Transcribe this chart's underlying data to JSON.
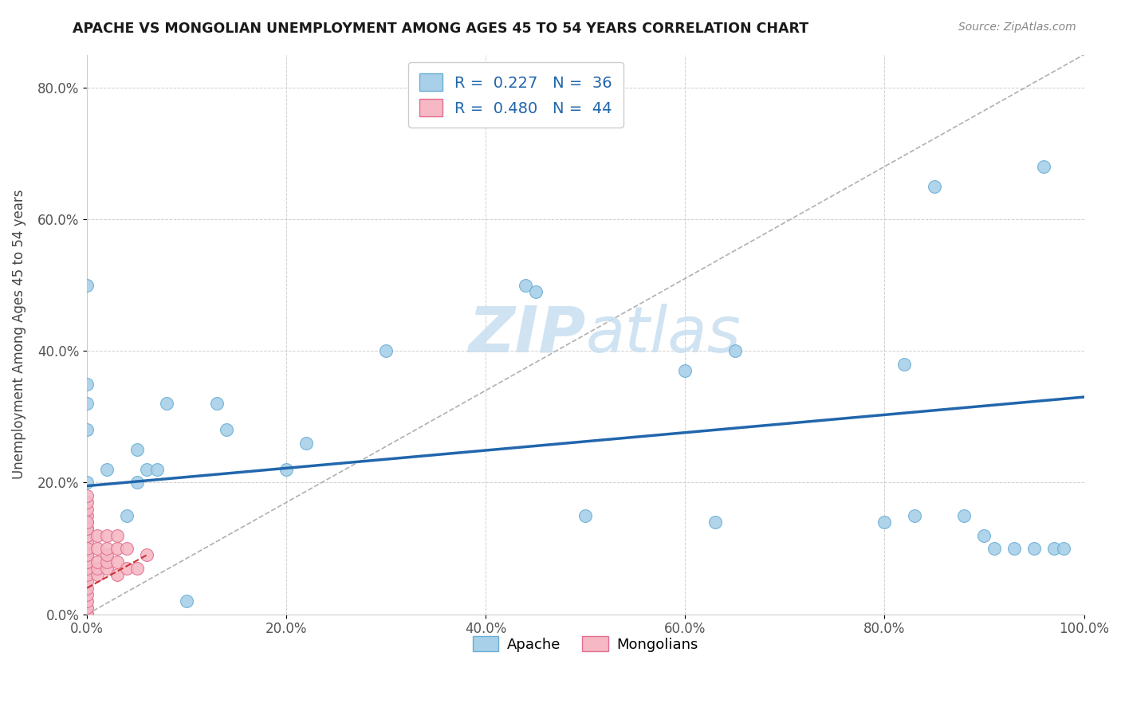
{
  "title": "APACHE VS MONGOLIAN UNEMPLOYMENT AMONG AGES 45 TO 54 YEARS CORRELATION CHART",
  "source": "Source: ZipAtlas.com",
  "ylabel": "Unemployment Among Ages 45 to 54 years",
  "xlim": [
    0,
    1.0
  ],
  "ylim": [
    0,
    0.85
  ],
  "xticks": [
    0.0,
    0.2,
    0.4,
    0.6,
    0.8,
    1.0
  ],
  "xticklabels": [
    "0.0%",
    "20.0%",
    "40.0%",
    "60.0%",
    "80.0%",
    "100.0%"
  ],
  "yticks": [
    0.0,
    0.2,
    0.4,
    0.6,
    0.8
  ],
  "yticklabels": [
    "0.0%",
    "20.0%",
    "40.0%",
    "60.0%",
    "80.0%"
  ],
  "apache_color": "#a8d0e8",
  "apache_edge": "#6aaed6",
  "mongolian_color": "#f5b8c4",
  "mongolian_edge": "#e07090",
  "trendline_apache_color": "#2166ac",
  "trendline_mongolian_color": "#cc3333",
  "ref_line_color": "#b0b0b0",
  "grid_color": "#d0d0d0",
  "watermark_color": "#c8dff0",
  "legend_R_apache": "R =  0.227",
  "legend_N_apache": "N =  36",
  "legend_R_mongolian": "R =  0.480",
  "legend_N_mongolian": "N =  44",
  "apache_x": [
    0.0,
    0.0,
    0.0,
    0.0,
    0.0,
    0.02,
    0.04,
    0.05,
    0.05,
    0.06,
    0.07,
    0.08,
    0.1,
    0.13,
    0.14,
    0.2,
    0.22,
    0.3,
    0.44,
    0.45,
    0.5,
    0.6,
    0.63,
    0.65,
    0.8,
    0.82,
    0.83,
    0.85,
    0.88,
    0.9,
    0.91,
    0.93,
    0.95,
    0.96,
    0.97,
    0.98
  ],
  "apache_y": [
    0.5,
    0.35,
    0.32,
    0.28,
    0.2,
    0.22,
    0.15,
    0.25,
    0.2,
    0.22,
    0.22,
    0.32,
    0.02,
    0.32,
    0.28,
    0.22,
    0.26,
    0.4,
    0.5,
    0.49,
    0.15,
    0.37,
    0.14,
    0.4,
    0.14,
    0.38,
    0.15,
    0.65,
    0.15,
    0.12,
    0.1,
    0.1,
    0.1,
    0.68,
    0.1,
    0.1
  ],
  "mongolian_x": [
    0.0,
    0.0,
    0.0,
    0.0,
    0.0,
    0.0,
    0.0,
    0.0,
    0.0,
    0.0,
    0.0,
    0.0,
    0.0,
    0.0,
    0.0,
    0.0,
    0.0,
    0.0,
    0.0,
    0.0,
    0.0,
    0.0,
    0.0,
    0.0,
    0.0,
    0.0,
    0.01,
    0.01,
    0.01,
    0.01,
    0.01,
    0.02,
    0.02,
    0.02,
    0.02,
    0.02,
    0.03,
    0.03,
    0.03,
    0.03,
    0.04,
    0.04,
    0.05,
    0.06
  ],
  "mongolian_y": [
    0.0,
    0.0,
    0.0,
    0.01,
    0.02,
    0.03,
    0.04,
    0.05,
    0.06,
    0.07,
    0.08,
    0.09,
    0.1,
    0.11,
    0.12,
    0.13,
    0.14,
    0.15,
    0.16,
    0.17,
    0.18,
    0.13,
    0.14,
    0.08,
    0.09,
    0.1,
    0.06,
    0.07,
    0.08,
    0.1,
    0.12,
    0.07,
    0.08,
    0.09,
    0.1,
    0.12,
    0.06,
    0.08,
    0.1,
    0.12,
    0.07,
    0.1,
    0.07,
    0.09
  ],
  "apache_trendline_x": [
    0.0,
    1.0
  ],
  "apache_trendline_y": [
    0.195,
    0.33
  ],
  "mongolian_trendline_x": [
    0.0,
    0.06
  ],
  "mongolian_trendline_y": [
    0.04,
    0.09
  ]
}
